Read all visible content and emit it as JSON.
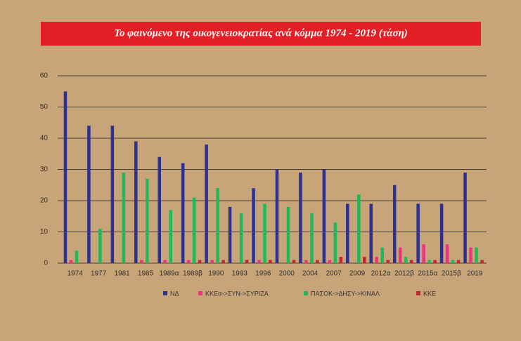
{
  "chart_data": {
    "type": "bar",
    "title": "Το φαινόμενο της οικογενειοκρατίας ανά κόμμα 1974 - 2019  (τάση)",
    "categories": [
      "1974",
      "1977",
      "1981",
      "1985",
      "1989α",
      "1989β",
      "1990",
      "1993",
      "1996",
      "2000",
      "2004",
      "2007",
      "2009",
      "2012α",
      "2012β",
      "2015α",
      "2015β",
      "2019"
    ],
    "series": [
      {
        "name": "ΝΔ",
        "color": "#2e3192",
        "values": [
          55,
          44,
          44,
          39,
          34,
          32,
          38,
          18,
          24,
          30,
          29,
          30,
          19,
          19,
          25,
          19,
          19,
          29
        ]
      },
      {
        "name": "ΚΚΕσ->ΣΥΝ->ΣΥΡΙΖΑ",
        "color": "#e8357d",
        "values": [
          1,
          0,
          0,
          1,
          1,
          1,
          1,
          0,
          1,
          0,
          1,
          1,
          0,
          2,
          5,
          6,
          6,
          5
        ]
      },
      {
        "name": "ΠΑΣΟΚ->ΔΗΣΥ->ΚΙΝΑΛ",
        "color": "#1fb85a",
        "values": [
          4,
          11,
          29,
          27,
          17,
          21,
          24,
          16,
          19,
          18,
          16,
          13,
          22,
          5,
          2,
          1,
          1,
          5
        ]
      },
      {
        "name": "ΚΚΕ",
        "color": "#c1272d",
        "values": [
          0,
          0,
          0,
          0,
          0,
          1,
          1,
          1,
          1,
          1,
          1,
          2,
          2,
          1,
          1,
          1,
          1,
          1
        ]
      }
    ],
    "ylim": [
      0,
      60
    ],
    "yticks": [
      0,
      10,
      20,
      30,
      40,
      50,
      60
    ],
    "grid": true
  }
}
